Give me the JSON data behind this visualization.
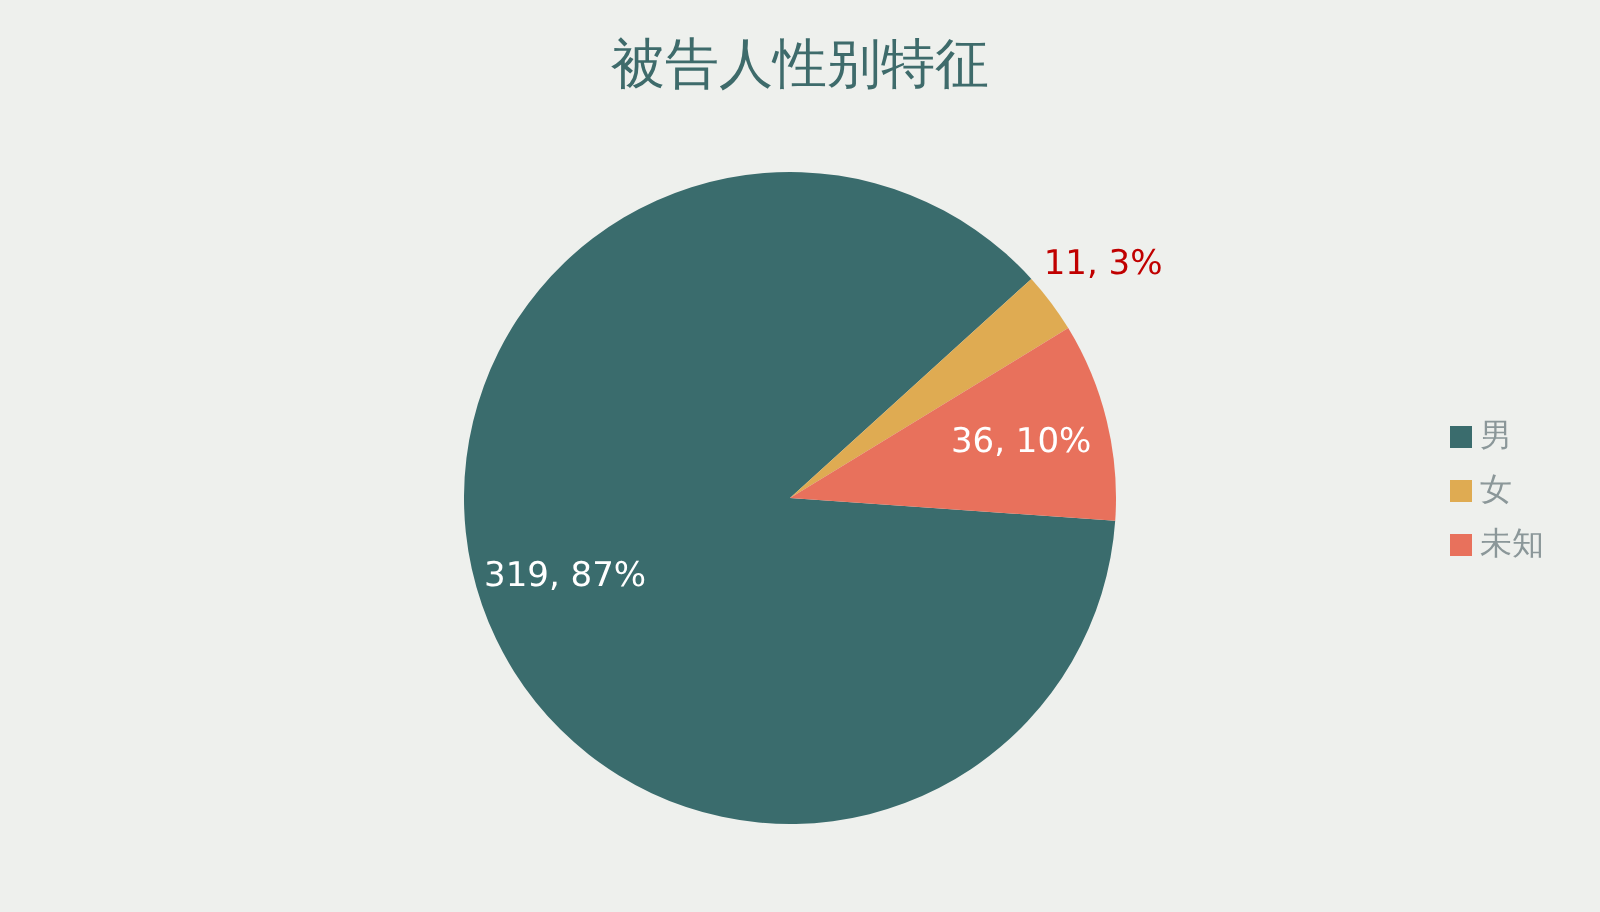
{
  "chart_data": {
    "type": "pie",
    "title": "被告人性别特征",
    "categories": [
      "男",
      "女",
      "未知"
    ],
    "values": [
      319,
      11,
      36
    ],
    "colors": [
      "#3a6c6d",
      "#dfab52",
      "#e8715c"
    ],
    "value_labels": [
      "319, 87%",
      "11, 3%",
      "36, 10%"
    ],
    "legend": "right"
  }
}
